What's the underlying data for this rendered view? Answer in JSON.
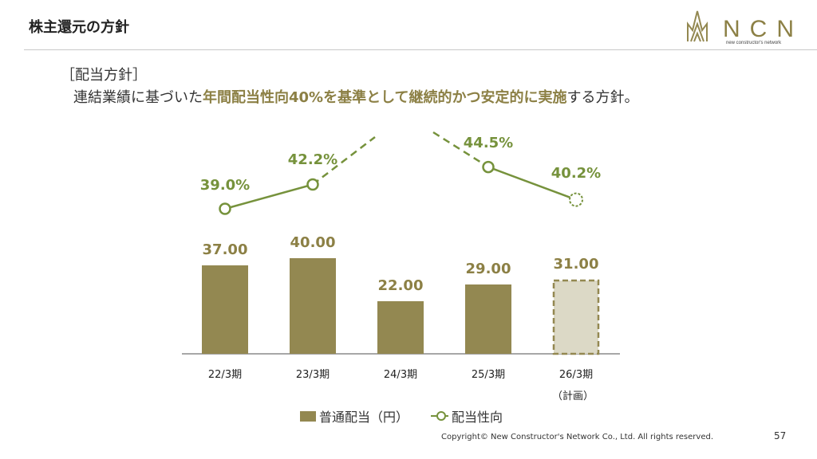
{
  "header": {
    "title": "株主還元の方針",
    "logo_text": "NCN",
    "logo_subtext": "new constructor's network"
  },
  "policy": {
    "heading": "［配当方針］",
    "text_before": "連結業績に基づいた",
    "text_highlight": "年間配当性向40%を基準として継続的かつ安定的に実施",
    "text_after": "する方針。"
  },
  "colors": {
    "bar": "#938851",
    "bar_plan": "#dcd9c6",
    "line": "#76923c",
    "label": "#8c8045"
  },
  "chart_data": {
    "type": "bar",
    "categories": [
      "22/3期",
      "23/3期",
      "24/3期",
      "25/3期",
      "26/3期"
    ],
    "category_sublabels": [
      "",
      "",
      "",
      "",
      "（計画）"
    ],
    "series": [
      {
        "name": "普通配当（円）",
        "type": "bar",
        "values": [
          37.0,
          40.0,
          22.0,
          29.0,
          31.0
        ],
        "labels": [
          "37.00",
          "40.00",
          "22.00",
          "29.00",
          "31.00"
        ],
        "planned": [
          false,
          false,
          false,
          false,
          true
        ]
      },
      {
        "name": "配当性向",
        "type": "line",
        "values": [
          39.0,
          42.2,
          null,
          44.5,
          40.2
        ],
        "labels": [
          "39.0%",
          "42.2%",
          "",
          "44.5%",
          "40.2%"
        ],
        "planned": [
          false,
          false,
          false,
          false,
          true
        ],
        "note": "24/3期 value off-chart (dashed segments)"
      }
    ],
    "legend": {
      "position": "bottom",
      "labels": [
        "普通配当（円）",
        "配当性向"
      ]
    }
  },
  "footer": {
    "copyright": "Copyright© New Constructor's Network Co., Ltd. All rights reserved.",
    "page": "57"
  }
}
